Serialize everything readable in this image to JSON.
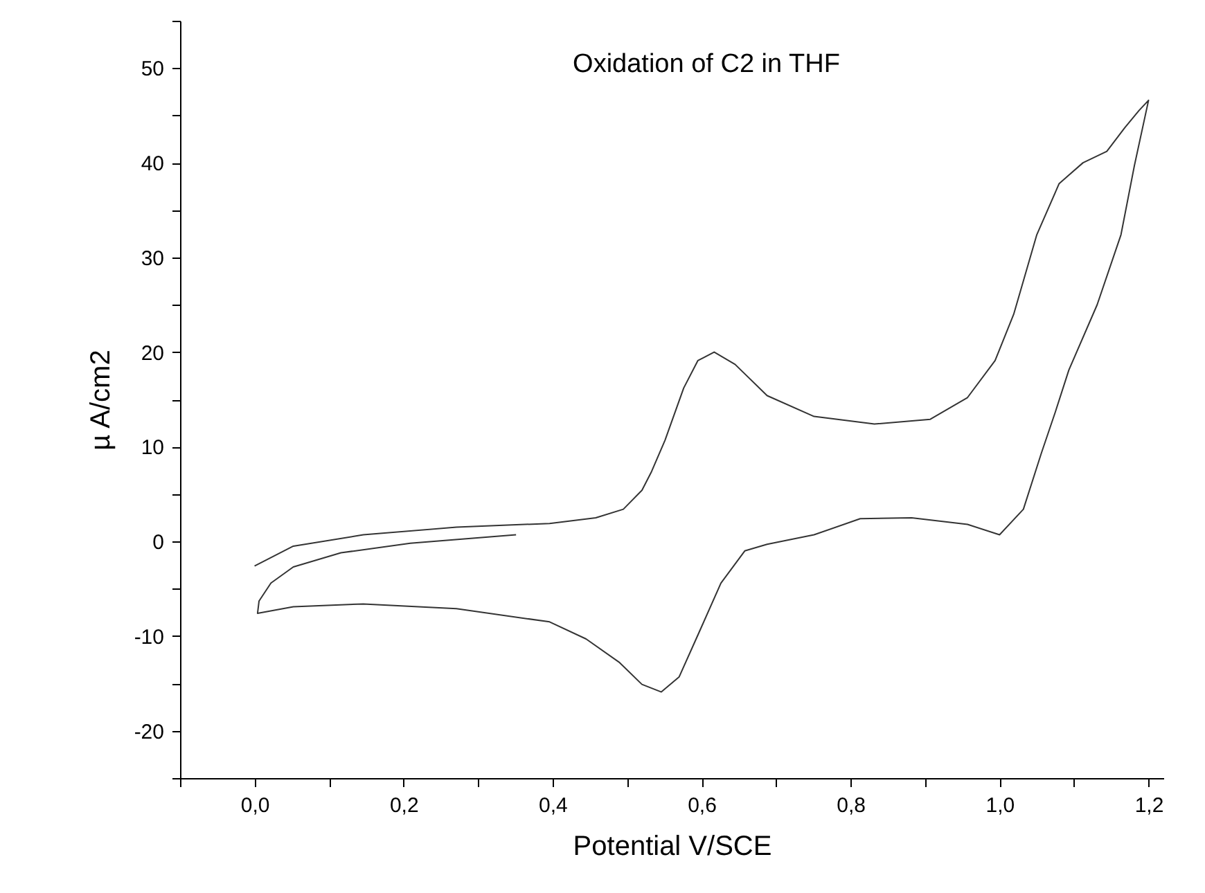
{
  "chart_data": {
    "type": "line",
    "xlabel": "Potential V/SCE",
    "ylabel": "µ A/cm2",
    "annotations": [
      "Oxidation of C2 in THF"
    ],
    "x": [
      0.0,
      0.052,
      0.146,
      0.271,
      0.396,
      0.458,
      0.495,
      0.52,
      0.533,
      0.551,
      0.576,
      0.595,
      0.617,
      0.645,
      0.688,
      0.751,
      0.832,
      0.907,
      0.957,
      0.994,
      1.019,
      1.05,
      1.08,
      1.112,
      1.144,
      1.168,
      1.187,
      1.2,
      1.181,
      1.163,
      1.131,
      1.093,
      1.075,
      1.056,
      1.032,
      1.0,
      0.957,
      0.882,
      0.813,
      0.751,
      0.688,
      0.658,
      0.626,
      0.595,
      0.57,
      0.546,
      0.52,
      0.49,
      0.445,
      0.396,
      0.271,
      0.146,
      0.052,
      0.004,
      0.006,
      0.022,
      0.052,
      0.116,
      0.209,
      0.351
    ],
    "series": [
      {
        "color": "#333333",
        "values": [
          -2.6,
          -0.5,
          0.7,
          1.5,
          1.9,
          2.5,
          3.4,
          5.4,
          7.4,
          10.7,
          16.2,
          19.1,
          20.0,
          18.7,
          15.4,
          13.2,
          12.4,
          12.9,
          15.2,
          19.1,
          24.0,
          32.4,
          37.8,
          40.0,
          41.2,
          43.7,
          45.5,
          46.6,
          39.7,
          32.4,
          25.0,
          18.1,
          13.7,
          9.3,
          3.4,
          0.7,
          1.8,
          2.5,
          2.4,
          0.7,
          -0.3,
          -1.0,
          -4.4,
          -9.9,
          -14.3,
          -15.9,
          -15.1,
          -12.8,
          -10.3,
          -8.5,
          -7.1,
          -6.6,
          -6.9,
          -7.6,
          -6.3,
          -4.4,
          -2.7,
          -1.2,
          -0.2,
          0.7
        ]
      }
    ],
    "xlim": [
      -0.1,
      1.22
    ],
    "xticks": [
      {
        "value": -0.1,
        "label": null
      },
      {
        "value": 0,
        "label": "0,0"
      },
      {
        "value": 0.1,
        "label": null
      },
      {
        "value": 0.2,
        "label": "0,2"
      },
      {
        "value": 0.3,
        "label": null
      },
      {
        "value": 0.4,
        "label": "0,4"
      },
      {
        "value": 0.5,
        "label": null
      },
      {
        "value": 0.6,
        "label": "0,6"
      },
      {
        "value": 0.7,
        "label": null
      },
      {
        "value": 0.8,
        "label": "0,8"
      },
      {
        "value": 0.9,
        "label": null
      },
      {
        "value": 1.0,
        "label": "1,0"
      },
      {
        "value": 1.1,
        "label": null
      },
      {
        "value": 1.2,
        "label": "1,2"
      }
    ],
    "ylim": [
      -25,
      55
    ],
    "yticks": [
      {
        "value": -25,
        "label": null
      },
      -20,
      {
        "value": -15,
        "label": null
      },
      -10,
      {
        "value": -5,
        "label": null
      },
      0,
      {
        "value": 5,
        "label": null
      },
      10,
      {
        "value": 15,
        "label": null
      },
      20,
      {
        "value": 25,
        "label": null
      },
      30,
      {
        "value": 35,
        "label": null
      },
      40,
      {
        "value": 45,
        "label": null
      },
      50,
      {
        "value": 55,
        "label": null
      }
    ],
    "grid": false,
    "marker": "none",
    "line_style": "solid"
  }
}
